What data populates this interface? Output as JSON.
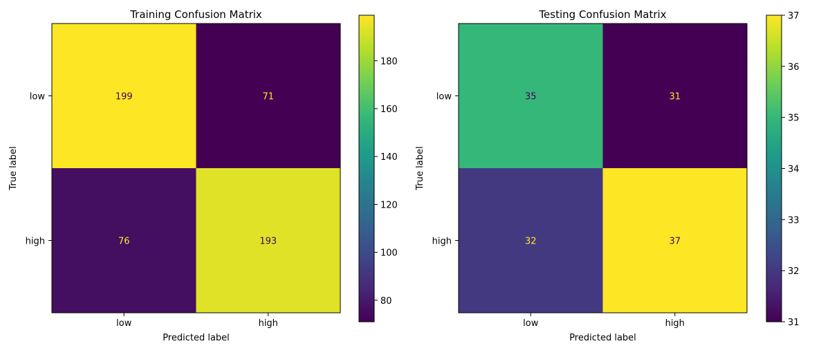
{
  "chart_data": [
    {
      "type": "heatmap",
      "title": "Training Confusion Matrix",
      "xlabel": "Predicted label",
      "ylabel": "True label",
      "x_categories": [
        "low",
        "high"
      ],
      "y_categories": [
        "low",
        "high"
      ],
      "values": [
        [
          199,
          71
        ],
        [
          76,
          193
        ]
      ],
      "colormap": "viridis",
      "colorbar": {
        "min": 71,
        "max": 199,
        "ticks": [
          80,
          100,
          120,
          140,
          160,
          180
        ]
      },
      "grid": false
    },
    {
      "type": "heatmap",
      "title": "Testing Confusion Matrix",
      "xlabel": "Predicted label",
      "ylabel": "True label",
      "x_categories": [
        "low",
        "high"
      ],
      "y_categories": [
        "low",
        "high"
      ],
      "values": [
        [
          35,
          31
        ],
        [
          32,
          37
        ]
      ],
      "colormap": "viridis",
      "colorbar": {
        "min": 31,
        "max": 37,
        "ticks": [
          31,
          32,
          33,
          34,
          35,
          36,
          37
        ]
      },
      "grid": false
    }
  ]
}
